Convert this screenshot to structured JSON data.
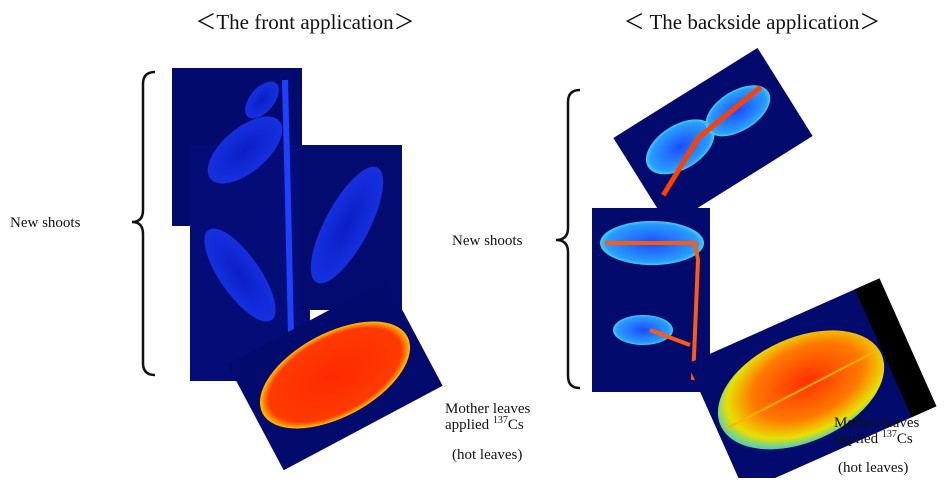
{
  "panels": [
    {
      "title": "＜The front application＞",
      "new_shoots": "New shoots",
      "mother": {
        "line1": "Mother leaves",
        "applied": "applied ",
        "isotope_mass": "137",
        "element": "Cs"
      },
      "note": "(hot leaves)"
    },
    {
      "title": "＜ The backside application＞",
      "new_shoots": "New shoots",
      "mother": {
        "line1": "Mother leaves",
        "applied": "applied ",
        "isotope_mass": "137",
        "element": "Cs"
      },
      "note": "(hot leaves)"
    }
  ]
}
